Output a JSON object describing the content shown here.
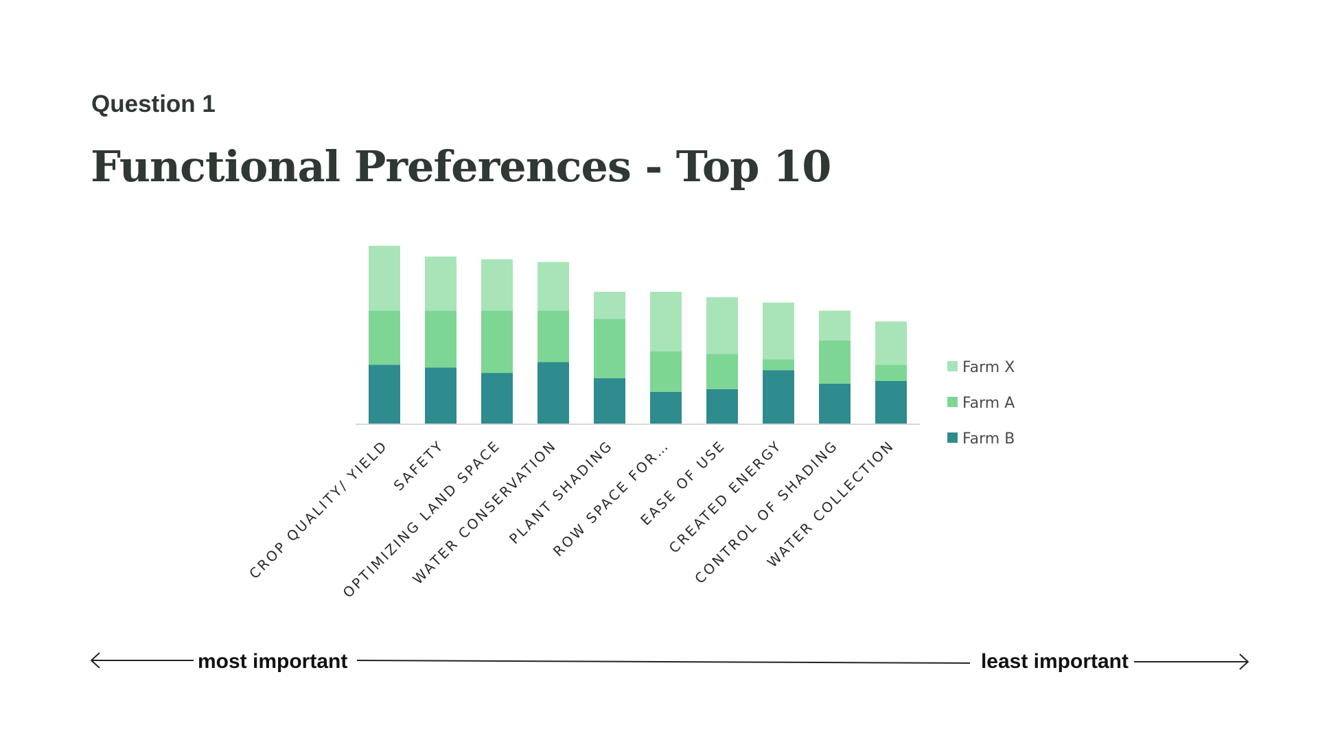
{
  "header": {
    "eyebrow": "Question 1",
    "title": "Functional Preferences - Top 10"
  },
  "importance_scale": {
    "left_label": "most important",
    "right_label": "least important"
  },
  "chart_data": {
    "type": "bar",
    "stacked": true,
    "categories": [
      "CROP QUALITY/ YIELD",
      "SAFETY",
      "OPTIMIZING LAND SPACE",
      "WATER CONSERVATION",
      "PLANT SHADING",
      "ROW SPACE FOR…",
      "EASE OF USE",
      "CREATED ENERGY",
      "CONTROL OF SHADING",
      "WATER COLLECTION"
    ],
    "series": [
      {
        "name": "Farm B",
        "color": "#2e8b8e",
        "values": [
          22,
          21,
          19,
          23,
          17,
          12,
          13,
          20,
          15,
          16
        ]
      },
      {
        "name": "Farm A",
        "color": "#7dd694",
        "values": [
          20,
          21,
          23,
          19,
          22,
          15,
          13,
          4,
          16,
          6
        ]
      },
      {
        "name": "Farm X",
        "color": "#a8e4b8",
        "values": [
          24,
          20,
          19,
          18,
          10,
          22,
          21,
          21,
          11,
          16
        ]
      }
    ],
    "legend_order": [
      "Farm X",
      "Farm A",
      "Farm B"
    ],
    "legend_position": "right",
    "ylim": [
      0,
      66
    ],
    "grid": false,
    "xlabel": "",
    "ylabel": ""
  }
}
